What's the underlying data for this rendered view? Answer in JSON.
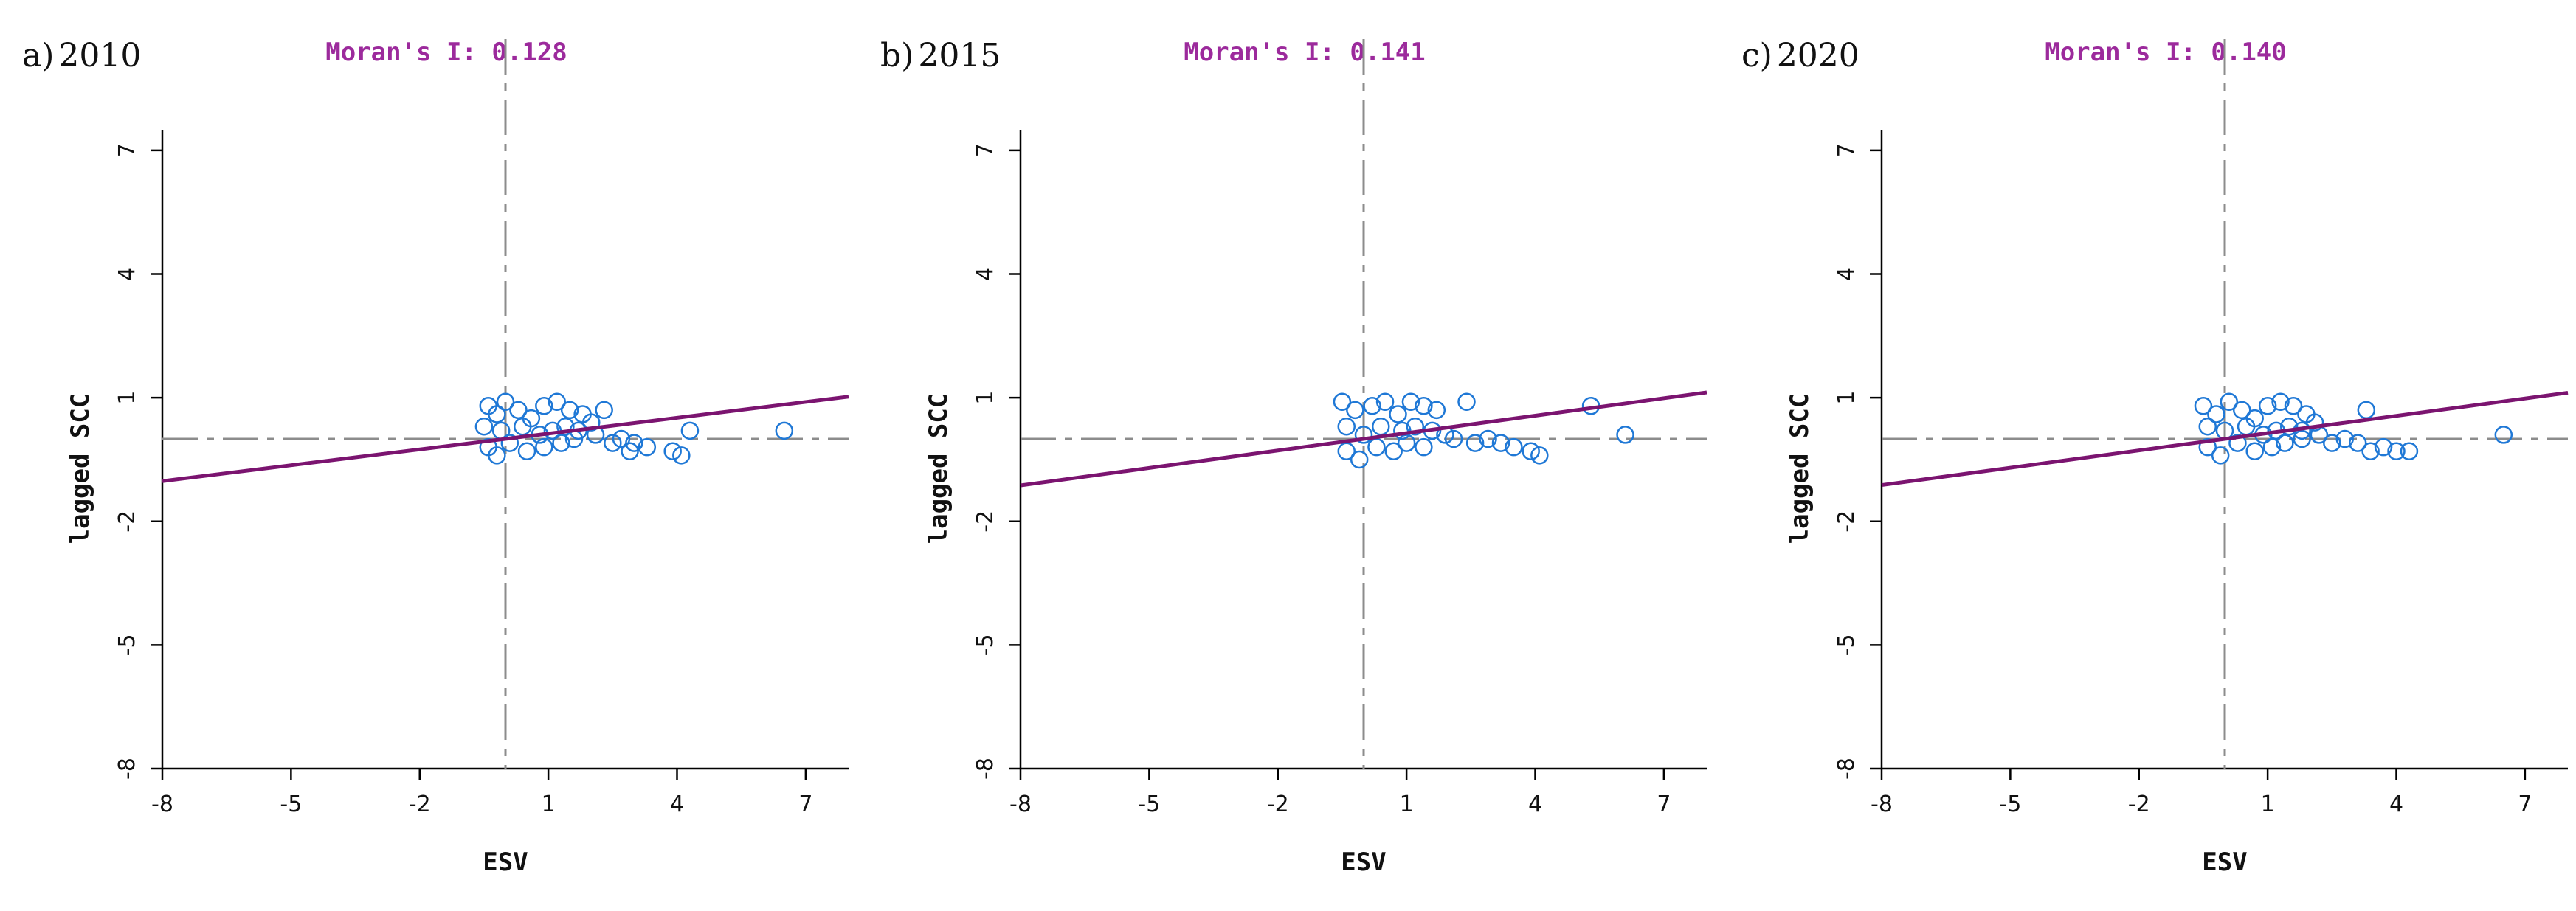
{
  "chart_data": [
    {
      "type": "scatter",
      "label": "a)",
      "year": "2010",
      "title": "Moran's I: 0.128",
      "moran_i": 0.128,
      "xlabel": "ESV",
      "ylabel": "lagged SCC",
      "xlim": [
        -8,
        8
      ],
      "ylim": [
        -8,
        8
      ],
      "x_ticks": [
        "-8",
        "-5",
        "-2",
        "1",
        "4",
        "7"
      ],
      "y_ticks": [
        "-8",
        "-5",
        "-2",
        "1",
        "4",
        "7"
      ],
      "reference_lines": {
        "x": 0,
        "y": 0
      },
      "regression_line": {
        "slope": 0.128,
        "intercept": 0
      },
      "points": [
        [
          -0.4,
          0.8
        ],
        [
          -0.2,
          0.6
        ],
        [
          0.0,
          0.9
        ],
        [
          0.3,
          0.7
        ],
        [
          0.6,
          0.5
        ],
        [
          0.9,
          0.8
        ],
        [
          1.2,
          0.9
        ],
        [
          1.5,
          0.7
        ],
        [
          1.8,
          0.6
        ],
        [
          -0.5,
          0.3
        ],
        [
          -0.1,
          0.2
        ],
        [
          0.4,
          0.3
        ],
        [
          0.8,
          0.1
        ],
        [
          1.1,
          0.2
        ],
        [
          1.4,
          0.3
        ],
        [
          1.7,
          0.2
        ],
        [
          2.0,
          0.4
        ],
        [
          -0.4,
          -0.2
        ],
        [
          -0.2,
          -0.4
        ],
        [
          0.1,
          -0.1
        ],
        [
          0.5,
          -0.3
        ],
        [
          0.9,
          -0.2
        ],
        [
          1.3,
          -0.1
        ],
        [
          1.6,
          0.0
        ],
        [
          2.1,
          0.1
        ],
        [
          2.3,
          0.7
        ],
        [
          2.5,
          -0.1
        ],
        [
          2.7,
          0.0
        ],
        [
          3.0,
          -0.1
        ],
        [
          2.9,
          -0.3
        ],
        [
          3.3,
          -0.2
        ],
        [
          3.9,
          -0.3
        ],
        [
          4.1,
          -0.4
        ],
        [
          4.3,
          0.2
        ],
        [
          6.5,
          0.2
        ]
      ]
    },
    {
      "type": "scatter",
      "label": "b)",
      "year": "2015",
      "title": "Moran's I: 0.141",
      "moran_i": 0.141,
      "xlabel": "ESV",
      "ylabel": "lagged SCC",
      "xlim": [
        -8,
        8
      ],
      "ylim": [
        -8,
        8
      ],
      "x_ticks": [
        "-8",
        "-5",
        "-2",
        "1",
        "4",
        "7"
      ],
      "y_ticks": [
        "-8",
        "-5",
        "-2",
        "1",
        "4",
        "7"
      ],
      "reference_lines": {
        "x": 0,
        "y": 0
      },
      "regression_line": {
        "slope": 0.141,
        "intercept": 0
      },
      "points": [
        [
          -0.5,
          0.9
        ],
        [
          -0.2,
          0.7
        ],
        [
          0.2,
          0.8
        ],
        [
          0.5,
          0.9
        ],
        [
          0.8,
          0.6
        ],
        [
          1.1,
          0.9
        ],
        [
          1.4,
          0.8
        ],
        [
          1.7,
          0.7
        ],
        [
          -0.4,
          0.3
        ],
        [
          0.0,
          0.1
        ],
        [
          0.4,
          0.3
        ],
        [
          0.9,
          0.2
        ],
        [
          1.2,
          0.3
        ],
        [
          1.6,
          0.2
        ],
        [
          -0.4,
          -0.3
        ],
        [
          -0.1,
          -0.5
        ],
        [
          0.3,
          -0.2
        ],
        [
          0.7,
          -0.3
        ],
        [
          1.0,
          -0.1
        ],
        [
          1.4,
          -0.2
        ],
        [
          1.9,
          0.1
        ],
        [
          2.1,
          0.0
        ],
        [
          2.4,
          0.9
        ],
        [
          2.6,
          -0.1
        ],
        [
          2.9,
          0.0
        ],
        [
          3.2,
          -0.1
        ],
        [
          3.5,
          -0.2
        ],
        [
          3.9,
          -0.3
        ],
        [
          4.1,
          -0.4
        ],
        [
          5.3,
          0.8
        ],
        [
          6.1,
          0.1
        ]
      ]
    },
    {
      "type": "scatter",
      "label": "c)",
      "year": "2020",
      "title": "Moran's I: 0.140",
      "moran_i": 0.14,
      "xlabel": "ESV",
      "ylabel": "lagged SCC",
      "xlim": [
        -8,
        8
      ],
      "ylim": [
        -8,
        8
      ],
      "x_ticks": [
        "-8",
        "-5",
        "-2",
        "1",
        "4",
        "7"
      ],
      "y_ticks": [
        "-8",
        "-5",
        "-2",
        "1",
        "4",
        "7"
      ],
      "reference_lines": {
        "x": 0,
        "y": 0
      },
      "regression_line": {
        "slope": 0.14,
        "intercept": 0
      },
      "points": [
        [
          -0.5,
          0.8
        ],
        [
          -0.2,
          0.6
        ],
        [
          0.1,
          0.9
        ],
        [
          0.4,
          0.7
        ],
        [
          0.7,
          0.5
        ],
        [
          1.0,
          0.8
        ],
        [
          1.3,
          0.9
        ],
        [
          1.6,
          0.8
        ],
        [
          1.9,
          0.6
        ],
        [
          -0.4,
          0.3
        ],
        [
          0.0,
          0.2
        ],
        [
          0.5,
          0.3
        ],
        [
          0.9,
          0.1
        ],
        [
          1.2,
          0.2
        ],
        [
          1.5,
          0.3
        ],
        [
          1.8,
          0.2
        ],
        [
          2.1,
          0.4
        ],
        [
          -0.4,
          -0.2
        ],
        [
          -0.1,
          -0.4
        ],
        [
          0.3,
          -0.1
        ],
        [
          0.7,
          -0.3
        ],
        [
          1.1,
          -0.2
        ],
        [
          1.4,
          -0.1
        ],
        [
          1.8,
          0.0
        ],
        [
          2.2,
          0.1
        ],
        [
          2.5,
          -0.1
        ],
        [
          2.8,
          0.0
        ],
        [
          3.1,
          -0.1
        ],
        [
          3.3,
          0.7
        ],
        [
          3.4,
          -0.3
        ],
        [
          3.7,
          -0.2
        ],
        [
          4.0,
          -0.3
        ],
        [
          4.3,
          -0.3
        ],
        [
          6.5,
          0.1
        ]
      ]
    }
  ]
}
